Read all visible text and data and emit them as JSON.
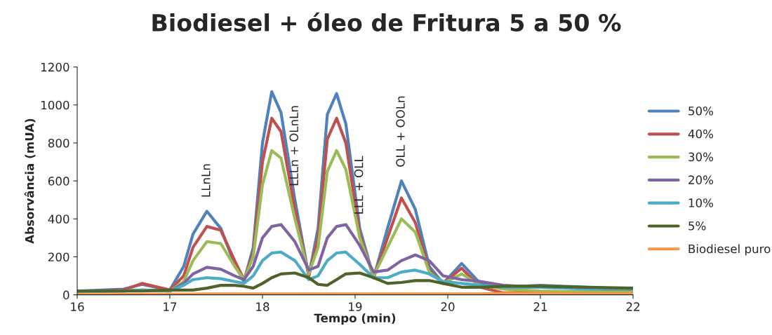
{
  "chart_data": {
    "type": "line",
    "title": "Biodiesel + óleo de Fritura 5 a 50 %",
    "xlabel": "Tempo (min)",
    "ylabel": "Absorvância (mUA)",
    "x": [
      16,
      16.5,
      16.7,
      17,
      17.15,
      17.25,
      17.4,
      17.55,
      17.7,
      17.8,
      17.9,
      18.0,
      18.1,
      18.2,
      18.35,
      18.5,
      18.6,
      18.7,
      18.8,
      18.9,
      19.05,
      19.2,
      19.35,
      19.5,
      19.65,
      19.8,
      19.95,
      20.15,
      20.35,
      20.6,
      21,
      21.5,
      22
    ],
    "series": [
      {
        "name": "50%",
        "color": "#4f81bd",
        "values": [
          20,
          30,
          55,
          25,
          150,
          320,
          440,
          350,
          160,
          70,
          250,
          800,
          1070,
          960,
          500,
          100,
          350,
          950,
          1060,
          900,
          350,
          90,
          350,
          600,
          450,
          150,
          60,
          165,
          60,
          40,
          50,
          40,
          30
        ]
      },
      {
        "name": "40%",
        "color": "#c0504d",
        "values": [
          15,
          25,
          60,
          25,
          100,
          250,
          360,
          340,
          180,
          80,
          220,
          700,
          930,
          860,
          450,
          100,
          300,
          820,
          930,
          800,
          320,
          90,
          300,
          510,
          380,
          130,
          60,
          140,
          40,
          10,
          15,
          15,
          20
        ]
      },
      {
        "name": "30%",
        "color": "#9bbb59",
        "values": [
          15,
          20,
          25,
          20,
          70,
          180,
          280,
          270,
          150,
          80,
          200,
          580,
          760,
          720,
          400,
          110,
          250,
          650,
          760,
          660,
          300,
          100,
          250,
          400,
          330,
          120,
          60,
          110,
          50,
          30,
          20,
          15,
          15
        ]
      },
      {
        "name": "20%",
        "color": "#8064a2",
        "values": [
          20,
          20,
          25,
          20,
          60,
          110,
          145,
          135,
          100,
          80,
          150,
          300,
          360,
          370,
          280,
          130,
          150,
          300,
          360,
          370,
          260,
          120,
          130,
          180,
          210,
          180,
          100,
          80,
          70,
          50,
          40,
          35,
          30
        ]
      },
      {
        "name": "10%",
        "color": "#4bacc6",
        "values": [
          20,
          20,
          25,
          20,
          50,
          80,
          90,
          85,
          70,
          60,
          100,
          180,
          220,
          225,
          180,
          80,
          100,
          180,
          220,
          225,
          160,
          90,
          90,
          120,
          130,
          110,
          70,
          60,
          50,
          40,
          40,
          30,
          30
        ]
      },
      {
        "name": "5%",
        "color": "#4f6228",
        "values": [
          20,
          20,
          20,
          25,
          25,
          25,
          35,
          50,
          50,
          45,
          35,
          60,
          90,
          110,
          115,
          90,
          55,
          50,
          80,
          110,
          115,
          90,
          60,
          65,
          75,
          75,
          60,
          40,
          40,
          45,
          45,
          40,
          35
        ]
      },
      {
        "name": "Biodiesel puro",
        "color": "#f79646",
        "values": [
          0,
          2,
          3,
          4,
          4,
          4,
          5,
          5,
          5,
          5,
          5,
          5,
          5,
          5,
          5,
          5,
          5,
          5,
          5,
          5,
          5,
          5,
          5,
          5,
          5,
          5,
          5,
          5,
          5,
          8,
          8,
          6,
          6
        ]
      }
    ],
    "annotations": [
      {
        "text": "LLnLn",
        "x": 17.4,
        "y": 440
      },
      {
        "text": "LLLn + OLnLn",
        "x": 18.35,
        "y": 500
      },
      {
        "text": "LLL + OLL",
        "x": 19.05,
        "y": 350
      },
      {
        "text": "OLL + OOLn",
        "x": 19.5,
        "y": 600
      }
    ],
    "xlim": [
      16,
      22
    ],
    "xticks": [
      16,
      17,
      18,
      19,
      20,
      21,
      22
    ],
    "ylim": [
      0,
      1200
    ],
    "yticks": [
      0,
      200,
      400,
      600,
      800,
      1000,
      1200
    ],
    "grid": false,
    "legend": "right",
    "marker": "none",
    "line_style": "solid"
  }
}
